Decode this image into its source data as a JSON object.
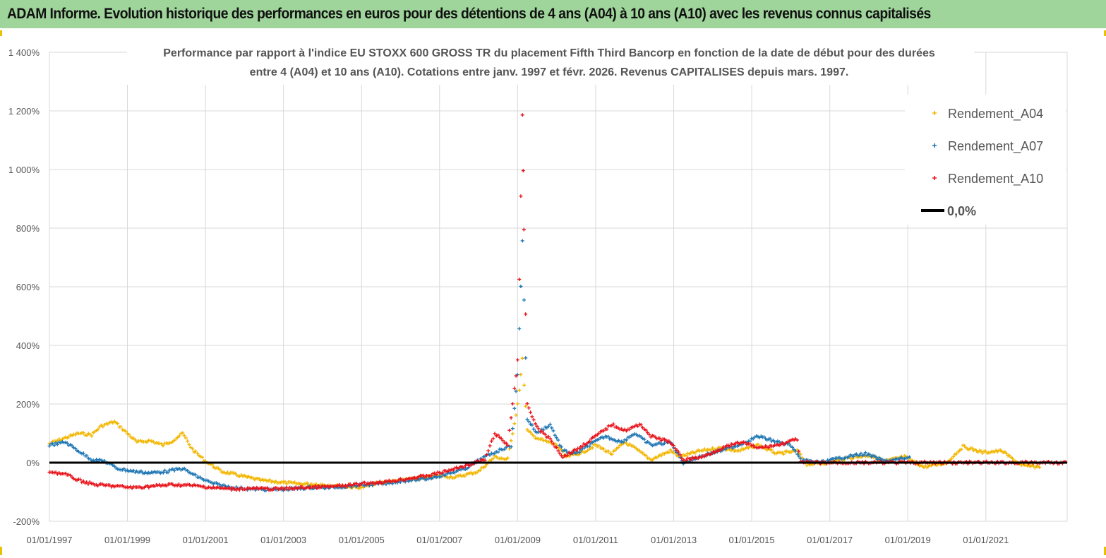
{
  "banner": {
    "title": "ADAM Informe. Evolution historique des performances en euros pour des détentions de 4 ans (A04) à 10 ans (A10) avec les revenus connus capitalisés",
    "background": "#9fd49b"
  },
  "chart_data": {
    "type": "scatter",
    "title_line1": "Performance par rapport à l'indice EU STOXX 600 GROSS TR  du placement Fifth Third Bancorp en fonction de la date de début pour des durées",
    "title_line2": "entre 4 (A04) et 10 ans (A10). Cotations entre janv. 1997 et févr. 2026. Revenus CAPITALISES depuis mars. 1997.",
    "x_ticks": [
      "01/01/1997",
      "01/01/1999",
      "01/01/2001",
      "01/01/2003",
      "01/01/2005",
      "01/01/2007",
      "01/01/2009",
      "01/01/2011",
      "01/01/2013",
      "01/01/2015",
      "01/01/2017",
      "01/01/2019",
      "01/01/2021"
    ],
    "y_ticks": [
      "1 400%",
      "1 200%",
      "1 000%",
      "800%",
      "600%",
      "400%",
      "200%",
      "0%",
      "-200%"
    ],
    "ylim": [
      -200,
      1400
    ],
    "xlim": [
      "1997-01-01",
      "2023-02-01"
    ],
    "grid": true,
    "legend_position": "top-right",
    "reference_line": {
      "name": "0,0%",
      "value": 0,
      "color": "#000000"
    },
    "series": [
      {
        "name": "Rendement_A04",
        "color": "#f2b600",
        "points": [
          [
            "1997-01-01",
            65
          ],
          [
            "1997-06-01",
            85
          ],
          [
            "1997-10-01",
            100
          ],
          [
            "1998-02-01",
            95
          ],
          [
            "1998-05-01",
            125
          ],
          [
            "1998-09-01",
            140
          ],
          [
            "1999-01-01",
            100
          ],
          [
            "1999-04-01",
            70
          ],
          [
            "1999-08-01",
            75
          ],
          [
            "1999-12-01",
            60
          ],
          [
            "2000-03-01",
            75
          ],
          [
            "2000-06-01",
            100
          ],
          [
            "2000-09-01",
            45
          ],
          [
            "2001-01-01",
            5
          ],
          [
            "2001-06-01",
            -30
          ],
          [
            "2001-12-01",
            -45
          ],
          [
            "2002-06-01",
            -60
          ],
          [
            "2003-01-01",
            -68
          ],
          [
            "2003-06-01",
            -72
          ],
          [
            "2004-01-01",
            -75
          ],
          [
            "2004-06-01",
            -80
          ],
          [
            "2005-01-01",
            -85
          ],
          [
            "2005-06-01",
            -70
          ],
          [
            "2006-01-01",
            -60
          ],
          [
            "2006-06-01",
            -55
          ],
          [
            "2007-01-01",
            -45
          ],
          [
            "2007-06-01",
            -50
          ],
          [
            "2008-01-01",
            -30
          ],
          [
            "2008-06-01",
            20
          ],
          [
            "2008-10-01",
            10
          ],
          [
            "2009-01-01",
            200
          ],
          [
            "2009-02-15",
            350
          ],
          [
            "2009-04-01",
            110
          ],
          [
            "2009-06-01",
            90
          ],
          [
            "2009-09-01",
            75
          ],
          [
            "2010-01-01",
            60
          ],
          [
            "2010-04-01",
            20
          ],
          [
            "2010-09-01",
            35
          ],
          [
            "2011-01-01",
            60
          ],
          [
            "2011-06-01",
            30
          ],
          [
            "2011-10-01",
            70
          ],
          [
            "2012-01-01",
            50
          ],
          [
            "2012-06-01",
            10
          ],
          [
            "2012-12-01",
            40
          ],
          [
            "2013-03-01",
            20
          ],
          [
            "2013-09-01",
            40
          ],
          [
            "2014-03-01",
            50
          ],
          [
            "2014-09-01",
            40
          ],
          [
            "2015-03-01",
            60
          ],
          [
            "2015-09-01",
            30
          ],
          [
            "2016-03-01",
            40
          ],
          [
            "2016-06-01",
            -5
          ],
          [
            "2017-01-01",
            0
          ],
          [
            "2017-06-01",
            15
          ],
          [
            "2018-01-01",
            25
          ],
          [
            "2018-06-01",
            5
          ],
          [
            "2018-12-01",
            20
          ],
          [
            "2019-06-01",
            -15
          ],
          [
            "2020-01-01",
            0
          ],
          [
            "2020-06-01",
            55
          ],
          [
            "2020-12-01",
            35
          ],
          [
            "2021-06-01",
            40
          ],
          [
            "2021-12-01",
            -10
          ],
          [
            "2022-06-01",
            -15
          ]
        ]
      },
      {
        "name": "Rendement_A07",
        "color": "#1f77b4",
        "points": [
          [
            "1997-01-01",
            60
          ],
          [
            "1997-06-01",
            70
          ],
          [
            "1997-10-01",
            40
          ],
          [
            "1998-02-01",
            10
          ],
          [
            "1998-06-01",
            5
          ],
          [
            "1998-10-01",
            -20
          ],
          [
            "1999-03-01",
            -30
          ],
          [
            "1999-08-01",
            -35
          ],
          [
            "2000-01-01",
            -30
          ],
          [
            "2000-06-01",
            -20
          ],
          [
            "2000-10-01",
            -45
          ],
          [
            "2001-03-01",
            -70
          ],
          [
            "2001-09-01",
            -85
          ],
          [
            "2002-03-01",
            -90
          ],
          [
            "2002-09-01",
            -92
          ],
          [
            "2003-03-01",
            -90
          ],
          [
            "2003-09-01",
            -85
          ],
          [
            "2004-03-01",
            -85
          ],
          [
            "2004-09-01",
            -80
          ],
          [
            "2005-03-01",
            -75
          ],
          [
            "2005-09-01",
            -70
          ],
          [
            "2006-03-01",
            -60
          ],
          [
            "2006-09-01",
            -55
          ],
          [
            "2007-03-01",
            -40
          ],
          [
            "2007-09-01",
            -20
          ],
          [
            "2008-03-01",
            20
          ],
          [
            "2008-07-01",
            40
          ],
          [
            "2008-11-01",
            60
          ],
          [
            "2009-01-01",
            300
          ],
          [
            "2009-02-15",
            760
          ],
          [
            "2009-04-01",
            150
          ],
          [
            "2009-07-01",
            100
          ],
          [
            "2009-11-01",
            130
          ],
          [
            "2010-03-01",
            40
          ],
          [
            "2010-07-01",
            30
          ],
          [
            "2010-11-01",
            60
          ],
          [
            "2011-04-01",
            90
          ],
          [
            "2011-09-01",
            70
          ],
          [
            "2012-01-01",
            100
          ],
          [
            "2012-06-01",
            60
          ],
          [
            "2012-12-01",
            70
          ],
          [
            "2013-04-01",
            0
          ],
          [
            "2013-09-01",
            20
          ],
          [
            "2014-03-01",
            40
          ],
          [
            "2014-09-01",
            60
          ],
          [
            "2015-03-01",
            90
          ],
          [
            "2015-09-01",
            70
          ],
          [
            "2016-01-01",
            60
          ],
          [
            "2016-04-01",
            10
          ],
          [
            "2016-10-01",
            0
          ],
          [
            "2017-06-01",
            20
          ],
          [
            "2017-12-01",
            30
          ],
          [
            "2018-06-01",
            5
          ],
          [
            "2018-12-01",
            15
          ],
          [
            "2019-02-01",
            15
          ]
        ]
      },
      {
        "name": "Rendement_A10",
        "color": "#e8131b",
        "points": [
          [
            "1997-01-01",
            -30
          ],
          [
            "1997-06-01",
            -40
          ],
          [
            "1997-10-01",
            -60
          ],
          [
            "1998-03-01",
            -75
          ],
          [
            "1998-09-01",
            -80
          ],
          [
            "1999-03-01",
            -85
          ],
          [
            "1999-09-01",
            -80
          ],
          [
            "2000-03-01",
            -75
          ],
          [
            "2000-09-01",
            -78
          ],
          [
            "2001-03-01",
            -85
          ],
          [
            "2001-09-01",
            -90
          ],
          [
            "2002-03-01",
            -88
          ],
          [
            "2002-09-01",
            -90
          ],
          [
            "2003-03-01",
            -88
          ],
          [
            "2003-09-01",
            -84
          ],
          [
            "2004-03-01",
            -82
          ],
          [
            "2004-09-01",
            -78
          ],
          [
            "2005-03-01",
            -70
          ],
          [
            "2005-09-01",
            -65
          ],
          [
            "2006-03-01",
            -55
          ],
          [
            "2006-09-01",
            -45
          ],
          [
            "2007-03-01",
            -30
          ],
          [
            "2007-09-01",
            -10
          ],
          [
            "2008-03-01",
            10
          ],
          [
            "2008-06-01",
            100
          ],
          [
            "2008-10-01",
            60
          ],
          [
            "2009-01-01",
            350
          ],
          [
            "2009-02-15",
            1180
          ],
          [
            "2009-03-01",
            800
          ],
          [
            "2009-04-01",
            200
          ],
          [
            "2009-07-01",
            120
          ],
          [
            "2009-11-01",
            80
          ],
          [
            "2010-03-01",
            20
          ],
          [
            "2010-08-01",
            50
          ],
          [
            "2011-01-01",
            90
          ],
          [
            "2011-06-01",
            130
          ],
          [
            "2011-10-01",
            110
          ],
          [
            "2012-03-01",
            130
          ],
          [
            "2012-06-01",
            90
          ],
          [
            "2012-12-01",
            70
          ],
          [
            "2013-04-01",
            10
          ],
          [
            "2013-10-01",
            20
          ],
          [
            "2014-04-01",
            50
          ],
          [
            "2014-10-01",
            70
          ],
          [
            "2015-03-01",
            50
          ],
          [
            "2015-09-01",
            60
          ],
          [
            "2016-03-01",
            80
          ],
          [
            "2016-04-01",
            0
          ],
          [
            "2023-02-01",
            0
          ]
        ]
      }
    ]
  }
}
